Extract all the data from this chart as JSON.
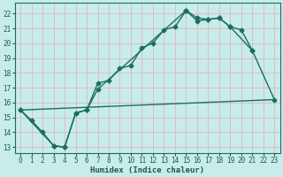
{
  "xlabel": "Humidex (Indice chaleur)",
  "bg_color": "#c8ecea",
  "grid_color": "#deb8b8",
  "line_color": "#1a6e64",
  "xlim": [
    -0.5,
    23.5
  ],
  "ylim": [
    12.6,
    22.7
  ],
  "xticks": [
    0,
    1,
    2,
    3,
    4,
    5,
    6,
    7,
    8,
    9,
    10,
    11,
    12,
    13,
    14,
    15,
    16,
    17,
    18,
    19,
    20,
    21,
    22,
    23
  ],
  "yticks": [
    13,
    14,
    15,
    16,
    17,
    18,
    19,
    20,
    21,
    22
  ],
  "curve1_x": [
    0,
    1,
    2,
    3,
    4,
    5,
    6,
    7,
    8,
    9,
    10,
    11,
    12,
    13,
    14,
    15,
    16,
    17,
    18,
    19,
    20,
    21
  ],
  "curve1_y": [
    15.5,
    14.8,
    14.0,
    13.1,
    13.0,
    15.3,
    15.5,
    17.3,
    17.5,
    18.3,
    18.5,
    19.7,
    20.0,
    20.9,
    21.1,
    22.2,
    21.7,
    21.6,
    21.7,
    21.1,
    20.9,
    19.5
  ],
  "curve2_x": [
    0,
    3,
    4,
    5,
    6,
    7,
    15,
    16,
    17,
    18,
    19,
    21,
    23
  ],
  "curve2_y": [
    15.5,
    13.1,
    13.0,
    15.3,
    15.5,
    16.9,
    22.2,
    21.5,
    21.6,
    21.7,
    21.1,
    19.5,
    16.2
  ],
  "line3_x": [
    0,
    23
  ],
  "line3_y": [
    15.5,
    16.2
  ],
  "marker_size": 2.5,
  "line_width": 1.0,
  "tick_fontsize": 5.5,
  "xlabel_fontsize": 6.5
}
